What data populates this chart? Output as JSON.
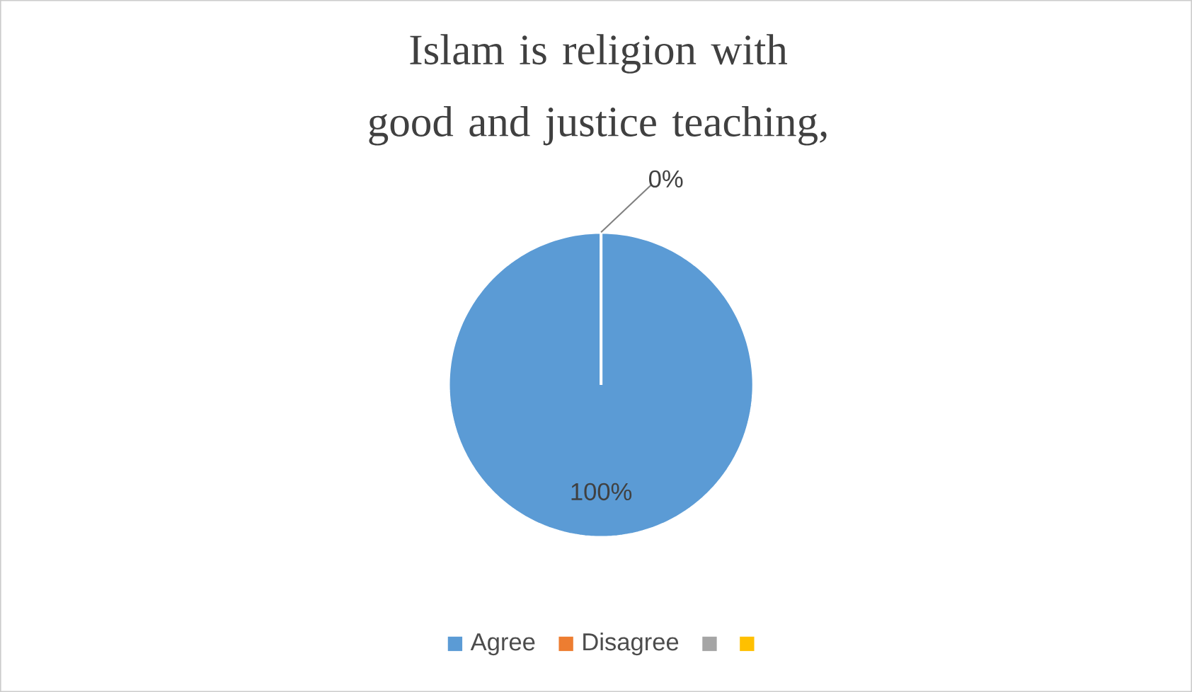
{
  "chart_data": {
    "type": "pie",
    "title": "Islam is religion with good and justice teaching,",
    "categories": [
      "Agree",
      "Disagree",
      null,
      null
    ],
    "values": [
      100,
      0,
      0,
      0
    ],
    "colors": [
      "#5b9bd5",
      "#ed7d31",
      "#a5a5a5",
      "#ffc000"
    ],
    "value_labels": [
      "100%",
      "0%",
      null,
      null
    ],
    "legend": "bottom"
  }
}
